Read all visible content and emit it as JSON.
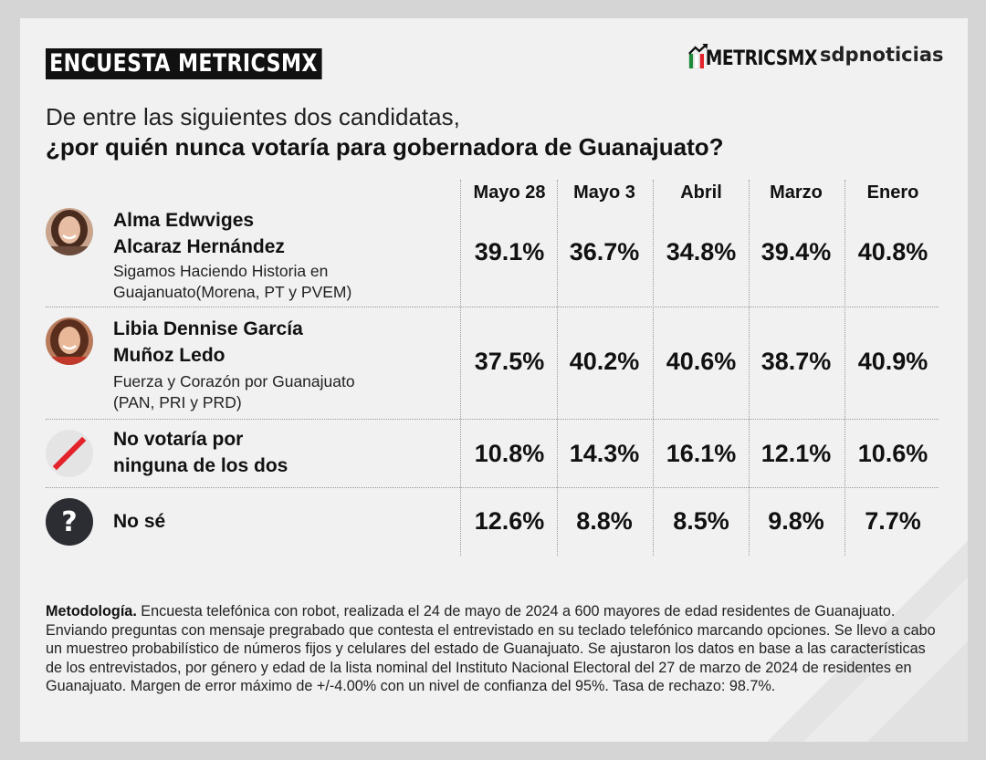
{
  "header": {
    "brand_title": "ENCUESTA METRICSMX",
    "logo_metrics": "METRICSMX",
    "logo_sdp": "sdpnoticias"
  },
  "question": {
    "line1": "De entre las siguientes dos candidatas,",
    "line2": "¿por quién nunca votaría para gobernadora de Guanajuato?"
  },
  "chart_data": {
    "type": "table",
    "columns": [
      "Mayo 28",
      "Mayo 3",
      "Abril",
      "Marzo",
      "Enero"
    ],
    "rows": [
      {
        "name_line1": "Alma Edwviges",
        "name_line2": "Alcaraz Hernández",
        "party_line1": "Sigamos Haciendo Historia en",
        "party_line2": "Guajanuato(Morena, PT y PVEM)",
        "icon": "candidate-photo",
        "values": [
          "39.1%",
          "36.7%",
          "34.8%",
          "39.4%",
          "40.8%"
        ]
      },
      {
        "name_line1": "Libia Dennise García",
        "name_line2": "Muñoz Ledo",
        "party_line1": "Fuerza y Corazón por Guanajuato",
        "party_line2": "(PAN, PRI y PRD)",
        "icon": "candidate-photo",
        "values": [
          "37.5%",
          "40.2%",
          "40.6%",
          "38.7%",
          "40.9%"
        ]
      },
      {
        "name_line1": "No votaría por",
        "name_line2": "ninguna de los dos",
        "icon": "slash-icon",
        "values": [
          "10.8%",
          "14.3%",
          "16.1%",
          "12.1%",
          "10.6%"
        ]
      },
      {
        "name_line1": "No sé",
        "icon": "question-icon",
        "icon_glyph": "?",
        "values": [
          "12.6%",
          "8.8%",
          "8.5%",
          "9.8%",
          "7.7%"
        ]
      }
    ]
  },
  "methodology": {
    "label": "Metodología.",
    "text": " Encuesta telefónica con robot, realizada el 24 de mayo de 2024 a 600 mayores de edad residentes de Guanajuato. Enviando preguntas con mensaje pregrabado que contesta el entrevistado en su teclado telefónico marcando opciones. Se llevo a cabo un muestreo probabilístico de números fijos y celulares del estado de Guanajuato. Se ajustaron los datos en base a las características de los entrevistados, por género y edad de la lista nominal del Instituto Nacional Electoral del 27 de marzo de 2024 de residentes en Guanajuato. Margen de error máximo de +/-4.00% con un nivel de confianza del 95%. Tasa de rechazo: 98.7%."
  },
  "colors": {
    "accent_red": "#e3222a",
    "dark": "#111111",
    "question_circle": "#2b2d33"
  }
}
